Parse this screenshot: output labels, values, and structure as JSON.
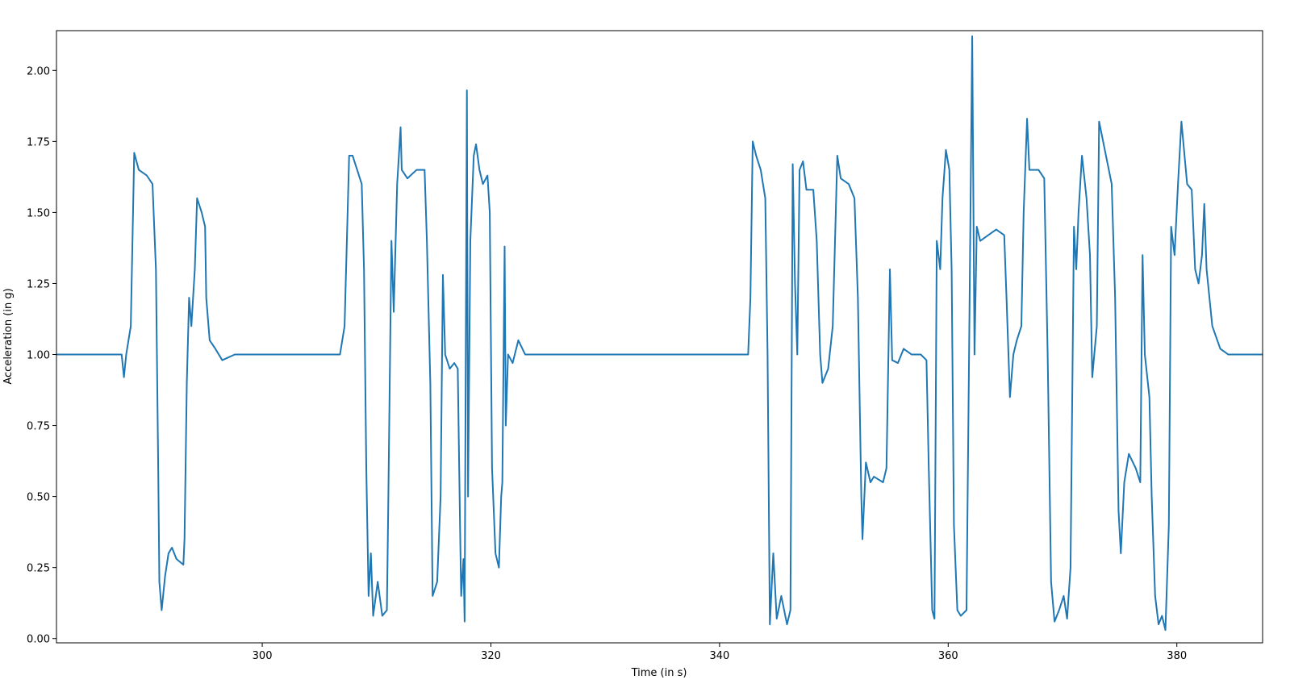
{
  "chart_data": {
    "type": "line",
    "xlabel": "Time (in s)",
    "ylabel": "Acceleration (in g)",
    "color": "#1f77b4",
    "xlim": [
      282.0,
      387.5
    ],
    "ylim": [
      -0.015,
      2.14
    ],
    "xticks": [
      300,
      320,
      340,
      360,
      380
    ],
    "yticks": [
      {
        "value": 0,
        "label": "0.00"
      },
      {
        "value": 0.25,
        "label": "0.25"
      },
      {
        "value": 0.5,
        "label": "0.50"
      },
      {
        "value": 0.75,
        "label": "0.75"
      },
      {
        "value": 1,
        "label": "1.00"
      },
      {
        "value": 1.25,
        "label": "1.25"
      },
      {
        "value": 1.5,
        "label": "1.50"
      },
      {
        "value": 1.75,
        "label": "1.75"
      },
      {
        "value": 2,
        "label": "2.00"
      }
    ],
    "x": [
      282.0,
      284.0,
      286.0,
      287.7,
      287.9,
      288.1,
      288.5,
      288.8,
      289.2,
      289.9,
      290.4,
      290.7,
      290.9,
      291.0,
      291.2,
      291.5,
      291.8,
      292.1,
      292.5,
      293.1,
      293.2,
      293.4,
      293.6,
      293.8,
      294.1,
      294.3,
      294.7,
      295.0,
      295.1,
      295.4,
      295.9,
      296.5,
      297.6,
      300.0,
      303.0,
      306.8,
      307.2,
      307.6,
      307.9,
      308.3,
      308.7,
      308.9,
      309.1,
      309.3,
      309.5,
      309.7,
      310.1,
      310.5,
      310.9,
      311.0,
      311.3,
      311.5,
      311.8,
      312.1,
      312.2,
      312.7,
      313.5,
      314.2,
      314.4,
      314.7,
      314.9,
      315.3,
      315.6,
      315.8,
      316.0,
      316.4,
      316.8,
      317.1,
      317.3,
      317.4,
      317.6,
      317.7,
      317.9,
      318.0,
      318.2,
      318.5,
      318.7,
      319.0,
      319.3,
      319.7,
      319.9,
      320.1,
      320.4,
      320.7,
      320.9,
      321.0,
      321.2,
      321.3,
      321.5,
      321.9,
      322.4,
      323.0,
      330.0,
      336.0,
      342.5,
      342.7,
      342.9,
      343.2,
      343.6,
      344.0,
      344.2,
      344.4,
      344.7,
      345.0,
      345.4,
      345.9,
      346.2,
      346.4,
      346.6,
      346.8,
      347.0,
      347.3,
      347.6,
      348.2,
      348.5,
      348.8,
      349.0,
      349.5,
      349.9,
      350.3,
      350.6,
      351.3,
      351.8,
      352.1,
      352.4,
      352.5,
      352.8,
      353.2,
      353.5,
      354.3,
      354.6,
      354.9,
      355.1,
      355.6,
      356.1,
      356.8,
      357.6,
      358.1,
      358.3,
      358.6,
      358.8,
      359.0,
      359.3,
      359.5,
      359.8,
      360.1,
      360.3,
      360.5,
      360.8,
      361.1,
      361.6,
      361.8,
      362.1,
      362.3,
      362.5,
      362.8,
      363.5,
      364.2,
      364.9,
      365.1,
      365.4,
      365.7,
      366.0,
      366.4,
      366.6,
      366.9,
      367.1,
      367.9,
      368.4,
      368.7,
      369.0,
      369.3,
      369.7,
      370.1,
      370.4,
      370.7,
      371.0,
      371.2,
      371.4,
      371.7,
      372.1,
      372.4,
      372.6,
      373.0,
      373.2,
      373.8,
      374.3,
      374.6,
      374.9,
      375.1,
      375.4,
      375.8,
      376.4,
      376.8,
      377.0,
      377.2,
      377.6,
      377.8,
      378.1,
      378.4,
      378.7,
      379.0,
      379.3,
      379.5,
      379.8,
      380.1,
      380.4,
      380.9,
      381.3,
      381.6,
      381.9,
      382.2,
      382.4,
      382.6,
      383.1,
      383.8,
      384.5,
      386.0,
      387.5
    ],
    "values": [
      1.0,
      1.0,
      1.0,
      1.0,
      0.92,
      1.0,
      1.1,
      1.71,
      1.65,
      1.63,
      1.6,
      1.3,
      0.6,
      0.2,
      0.1,
      0.22,
      0.3,
      0.32,
      0.28,
      0.26,
      0.35,
      0.9,
      1.2,
      1.1,
      1.3,
      1.55,
      1.5,
      1.45,
      1.2,
      1.05,
      1.02,
      0.98,
      1.0,
      1.0,
      1.0,
      1.0,
      1.1,
      1.7,
      1.7,
      1.65,
      1.6,
      1.3,
      0.6,
      0.15,
      0.3,
      0.08,
      0.2,
      0.08,
      0.1,
      0.4,
      1.4,
      1.15,
      1.6,
      1.8,
      1.65,
      1.62,
      1.65,
      1.65,
      1.4,
      0.9,
      0.15,
      0.2,
      0.5,
      1.28,
      1.0,
      0.95,
      0.97,
      0.95,
      0.4,
      0.15,
      0.28,
      0.06,
      1.93,
      0.5,
      1.4,
      1.7,
      1.74,
      1.65,
      1.6,
      1.63,
      1.5,
      0.6,
      0.3,
      0.25,
      0.5,
      0.55,
      1.38,
      0.75,
      1.0,
      0.97,
      1.05,
      1.0,
      1.0,
      1.0,
      1.0,
      1.2,
      1.75,
      1.7,
      1.65,
      1.55,
      1.0,
      0.05,
      0.3,
      0.07,
      0.15,
      0.05,
      0.1,
      1.67,
      1.25,
      1.0,
      1.65,
      1.68,
      1.58,
      1.58,
      1.4,
      1.0,
      0.9,
      0.95,
      1.1,
      1.7,
      1.62,
      1.6,
      1.55,
      1.2,
      0.5,
      0.35,
      0.62,
      0.55,
      0.57,
      0.55,
      0.6,
      1.3,
      0.98,
      0.97,
      1.02,
      1.0,
      1.0,
      0.98,
      0.6,
      0.1,
      0.07,
      1.4,
      1.3,
      1.55,
      1.72,
      1.65,
      1.3,
      0.4,
      0.1,
      0.08,
      0.1,
      0.9,
      2.12,
      1.0,
      1.45,
      1.4,
      1.42,
      1.44,
      1.42,
      1.2,
      0.85,
      1.0,
      1.05,
      1.1,
      1.5,
      1.83,
      1.65,
      1.65,
      1.62,
      1.0,
      0.2,
      0.06,
      0.1,
      0.15,
      0.07,
      0.25,
      1.45,
      1.3,
      1.5,
      1.7,
      1.55,
      1.35,
      0.92,
      1.1,
      1.82,
      1.7,
      1.6,
      1.2,
      0.45,
      0.3,
      0.55,
      0.65,
      0.6,
      0.55,
      1.35,
      1.0,
      0.85,
      0.5,
      0.15,
      0.05,
      0.08,
      0.03,
      0.4,
      1.45,
      1.35,
      1.6,
      1.82,
      1.6,
      1.58,
      1.3,
      1.25,
      1.35,
      1.53,
      1.3,
      1.1,
      1.02,
      1.0,
      1.0,
      1.0
    ]
  }
}
